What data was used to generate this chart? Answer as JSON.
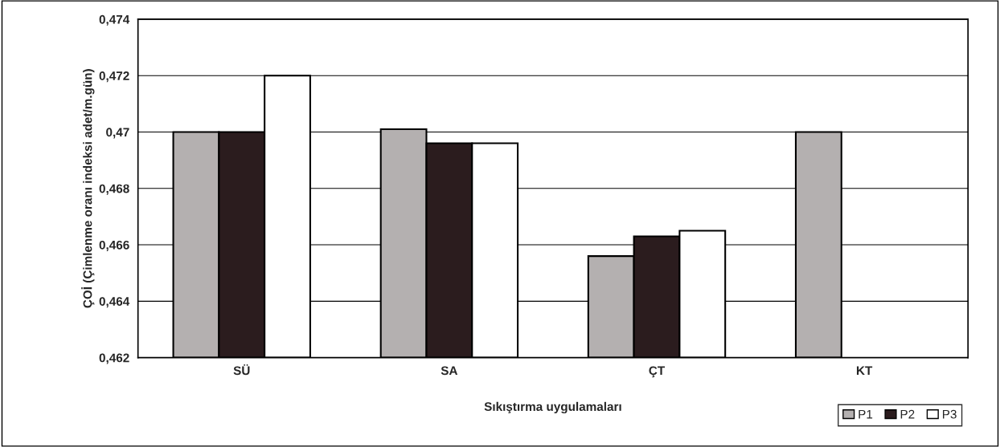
{
  "chart_data": {
    "type": "bar",
    "xlabel": "Sıkıştırma uygulamaları",
    "ylabel": "ÇOİ (Çimlenme oranı indeksi adet/m.gün)",
    "categories": [
      "SÜ",
      "SA",
      "ÇT",
      "KT"
    ],
    "series": [
      {
        "name": "P1",
        "color": "#b4b0b0",
        "values": [
          0.47,
          0.4701,
          0.4656,
          0.47
        ]
      },
      {
        "name": "P2",
        "color": "#2b1c1e",
        "values": [
          0.47,
          0.4696,
          0.4663,
          null
        ]
      },
      {
        "name": "P3",
        "color": "#ffffff",
        "values": [
          0.472,
          0.4696,
          0.4665,
          null
        ]
      }
    ],
    "ylim": [
      0.462,
      0.474
    ],
    "yticks": [
      {
        "value": 0.462,
        "label": "0,462"
      },
      {
        "value": 0.464,
        "label": "0,464"
      },
      {
        "value": 0.466,
        "label": "0,466"
      },
      {
        "value": 0.468,
        "label": "0,468"
      },
      {
        "value": 0.47,
        "label": "0,47"
      },
      {
        "value": 0.472,
        "label": "0,472"
      },
      {
        "value": 0.474,
        "label": "0,474"
      }
    ],
    "grid": "y",
    "legend": "bottom right"
  }
}
